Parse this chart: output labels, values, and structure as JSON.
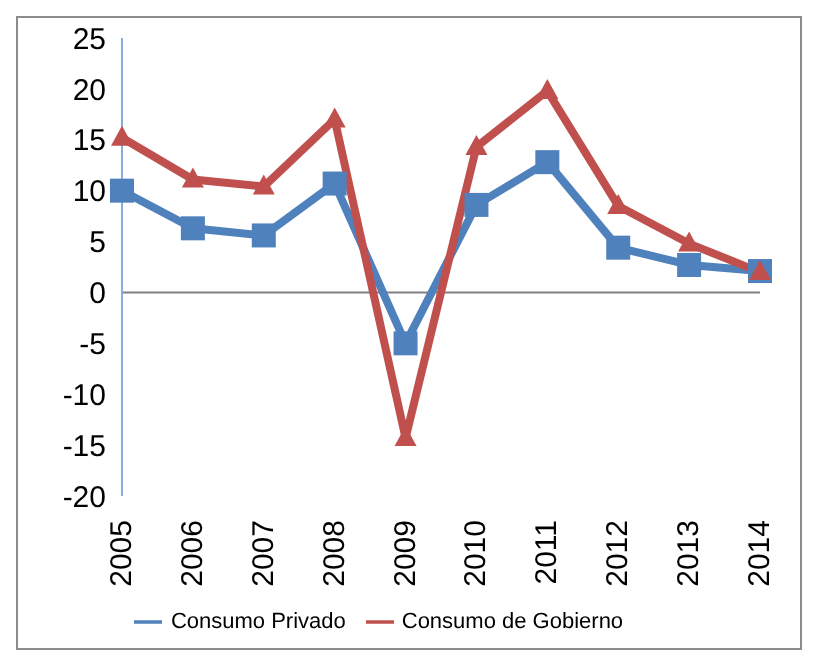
{
  "chart_data": {
    "type": "line",
    "categories": [
      "2005",
      "2006",
      "2007",
      "2008",
      "2009",
      "2010",
      "2011",
      "2012",
      "2013",
      "2014"
    ],
    "series": [
      {
        "name": "Consumo Privado",
        "color": "#4f81bd",
        "marker": "square",
        "values": [
          10.0,
          6.3,
          5.6,
          10.7,
          -5.0,
          8.6,
          12.8,
          4.4,
          2.7,
          2.1
        ]
      },
      {
        "name": "Consumo de Gobierno",
        "color": "#c0504d",
        "marker": "triangle",
        "values": [
          15.2,
          11.1,
          10.4,
          17.0,
          -14.3,
          14.3,
          19.8,
          8.5,
          4.8,
          2.0
        ]
      }
    ],
    "ylim": [
      -20,
      25
    ],
    "yticks": [
      -20,
      -15,
      -10,
      -5,
      0,
      5,
      10,
      15,
      20,
      25
    ],
    "legend": "bottom"
  }
}
